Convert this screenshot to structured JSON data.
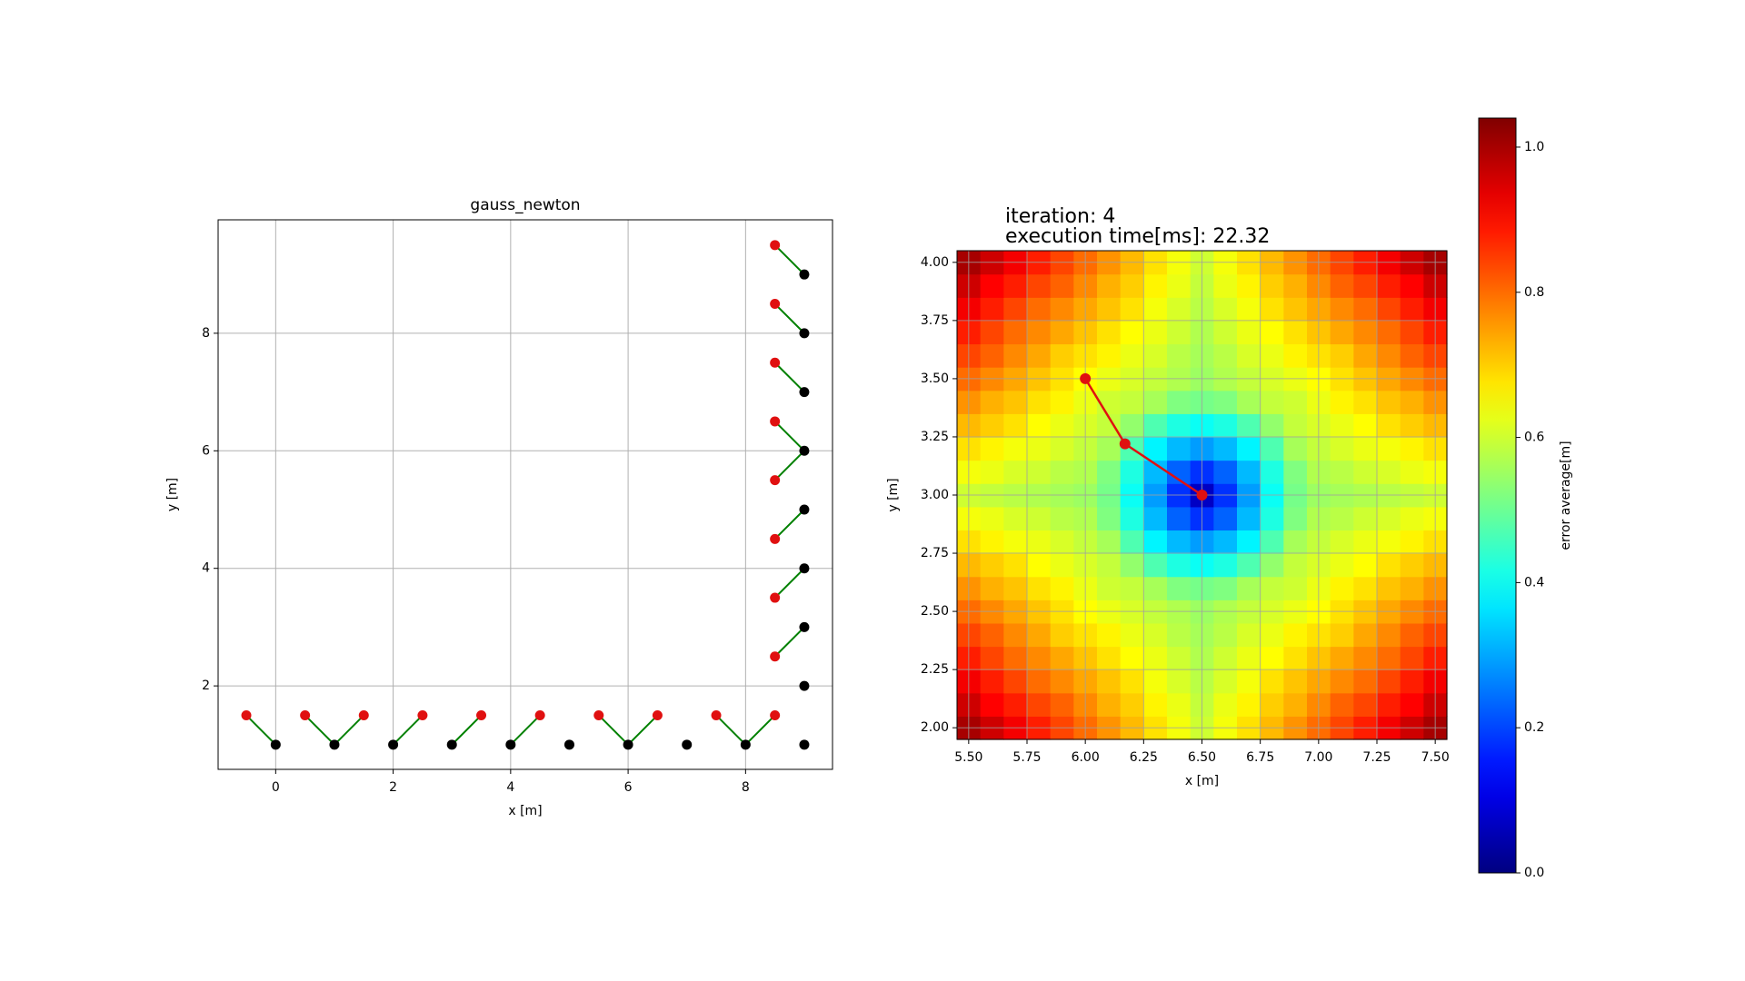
{
  "chart_data": [
    {
      "type": "scatter",
      "title": "gauss_newton",
      "xlabel": "x [m]",
      "ylabel": "y [m]",
      "xlim": [
        -0.98,
        9.48
      ],
      "ylim": [
        0.58,
        9.93
      ],
      "xticks": [
        0,
        2,
        4,
        6,
        8
      ],
      "yticks": [
        2,
        4,
        6,
        8
      ],
      "grid": true,
      "segments": {
        "color": "#008000",
        "lines": [
          {
            "x": [
              -0.5,
              0
            ],
            "y": [
              1.5,
              1
            ]
          },
          {
            "x": [
              0.5,
              1
            ],
            "y": [
              1.5,
              1
            ]
          },
          {
            "x": [
              1.5,
              1
            ],
            "y": [
              1.5,
              1
            ]
          },
          {
            "x": [
              2.5,
              2
            ],
            "y": [
              1.5,
              1
            ]
          },
          {
            "x": [
              3.5,
              3
            ],
            "y": [
              1.5,
              1
            ]
          },
          {
            "x": [
              4.5,
              4
            ],
            "y": [
              1.5,
              1
            ]
          },
          {
            "x": [
              5.5,
              6
            ],
            "y": [
              1.5,
              1
            ]
          },
          {
            "x": [
              6.5,
              6
            ],
            "y": [
              1.5,
              1
            ]
          },
          {
            "x": [
              7.5,
              8
            ],
            "y": [
              1.5,
              1
            ]
          },
          {
            "x": [
              8.5,
              8
            ],
            "y": [
              1.5,
              1
            ]
          },
          {
            "x": [
              8.5,
              9
            ],
            "y": [
              2.5,
              3
            ]
          },
          {
            "x": [
              8.5,
              9
            ],
            "y": [
              3.5,
              4
            ]
          },
          {
            "x": [
              8.5,
              9
            ],
            "y": [
              4.5,
              5
            ]
          },
          {
            "x": [
              8.5,
              9
            ],
            "y": [
              5.5,
              6
            ]
          },
          {
            "x": [
              8.5,
              9
            ],
            "y": [
              6.5,
              6
            ]
          },
          {
            "x": [
              8.5,
              9
            ],
            "y": [
              7.5,
              7
            ]
          },
          {
            "x": [
              8.5,
              9
            ],
            "y": [
              8.5,
              8
            ]
          },
          {
            "x": [
              8.5,
              9
            ],
            "y": [
              9.5,
              9
            ]
          }
        ]
      },
      "series": [
        {
          "color": "#000000",
          "x": [
            0,
            1,
            2,
            3,
            4,
            5,
            6,
            7,
            8,
            9,
            9,
            9,
            9,
            9,
            9,
            9,
            9,
            9
          ],
          "y": [
            1,
            1,
            1,
            1,
            1,
            1,
            1,
            1,
            1,
            1,
            2,
            3,
            4,
            5,
            6,
            7,
            8,
            9
          ]
        },
        {
          "color": "#e01010",
          "x": [
            -0.5,
            0.5,
            1.5,
            2.5,
            3.5,
            4.5,
            5.5,
            6.5,
            7.5,
            8.5,
            8.5,
            8.5,
            8.5,
            8.5,
            8.5,
            8.5,
            8.5,
            8.5
          ],
          "y": [
            1.5,
            1.5,
            1.5,
            1.5,
            1.5,
            1.5,
            1.5,
            1.5,
            1.5,
            1.5,
            2.5,
            3.5,
            4.5,
            5.5,
            6.5,
            7.5,
            8.5,
            9.5
          ]
        }
      ]
    },
    {
      "type": "heatmap",
      "title_lines": [
        "iteration: 4",
        "execution time[ms]: 22.32"
      ],
      "xlabel": "x [m]",
      "ylabel": "y [m]",
      "xlim": [
        5.45,
        7.55
      ],
      "ylim": [
        1.95,
        4.05
      ],
      "grid": true,
      "cmap": "jet",
      "xticks": [
        {
          "value": 5.5,
          "label": "5.50"
        },
        {
          "value": 5.75,
          "label": "5.75"
        },
        {
          "value": 6,
          "label": "6.00"
        },
        {
          "value": 6.25,
          "label": "6.25"
        },
        {
          "value": 6.5,
          "label": "6.50"
        },
        {
          "value": 6.75,
          "label": "6.75"
        },
        {
          "value": 7,
          "label": "7.00"
        },
        {
          "value": 7.25,
          "label": "7.25"
        },
        {
          "value": 7.5,
          "label": "7.50"
        }
      ],
      "yticks": [
        {
          "value": 2,
          "label": "2.00"
        },
        {
          "value": 2.25,
          "label": "2.25"
        },
        {
          "value": 2.5,
          "label": "2.50"
        },
        {
          "value": 2.75,
          "label": "2.75"
        },
        {
          "value": 3,
          "label": "3.00"
        },
        {
          "value": 3.25,
          "label": "3.25"
        },
        {
          "value": 3.5,
          "label": "3.50"
        },
        {
          "value": 3.75,
          "label": "3.75"
        },
        {
          "value": 4,
          "label": "4.00"
        }
      ],
      "x": [
        5.5,
        5.6,
        5.7,
        5.8,
        5.9,
        6.0,
        6.1,
        6.2,
        6.3,
        6.4,
        6.5,
        6.6,
        6.7,
        6.8,
        6.9,
        7.0,
        7.1,
        7.2,
        7.3,
        7.4,
        7.5
      ],
      "y": [
        2.0,
        2.1,
        2.2,
        2.3,
        2.4,
        2.5,
        2.6,
        2.7,
        2.8,
        2.9,
        3.0,
        3.1,
        3.2,
        3.3,
        3.4,
        3.5,
        3.6,
        3.7,
        3.8,
        3.9,
        4.0
      ],
      "z": [
        [
          1.0,
          0.96,
          0.92,
          0.88,
          0.84,
          0.8,
          0.76,
          0.72,
          0.68,
          0.64,
          0.6,
          0.64,
          0.68,
          0.72,
          0.76,
          0.8,
          0.84,
          0.88,
          0.92,
          0.96,
          1.0
        ],
        [
          0.96,
          0.91,
          0.88,
          0.84,
          0.81,
          0.77,
          0.73,
          0.7,
          0.66,
          0.63,
          0.59,
          0.63,
          0.66,
          0.7,
          0.73,
          0.77,
          0.81,
          0.84,
          0.88,
          0.91,
          0.96
        ],
        [
          0.92,
          0.88,
          0.84,
          0.8,
          0.77,
          0.74,
          0.71,
          0.68,
          0.64,
          0.61,
          0.58,
          0.61,
          0.64,
          0.68,
          0.71,
          0.74,
          0.77,
          0.8,
          0.84,
          0.88,
          0.92
        ],
        [
          0.88,
          0.84,
          0.8,
          0.77,
          0.74,
          0.71,
          0.68,
          0.65,
          0.63,
          0.6,
          0.57,
          0.6,
          0.63,
          0.65,
          0.68,
          0.71,
          0.74,
          0.77,
          0.8,
          0.84,
          0.88
        ],
        [
          0.84,
          0.81,
          0.77,
          0.74,
          0.7,
          0.68,
          0.66,
          0.63,
          0.61,
          0.58,
          0.56,
          0.58,
          0.61,
          0.63,
          0.66,
          0.68,
          0.7,
          0.74,
          0.77,
          0.81,
          0.84
        ],
        [
          0.8,
          0.77,
          0.74,
          0.71,
          0.68,
          0.65,
          0.63,
          0.61,
          0.59,
          0.57,
          0.55,
          0.57,
          0.59,
          0.61,
          0.63,
          0.65,
          0.68,
          0.71,
          0.74,
          0.77,
          0.8
        ],
        [
          0.76,
          0.73,
          0.71,
          0.68,
          0.66,
          0.63,
          0.6,
          0.59,
          0.56,
          0.52,
          0.51,
          0.52,
          0.56,
          0.59,
          0.6,
          0.63,
          0.66,
          0.68,
          0.71,
          0.73,
          0.76
        ],
        [
          0.72,
          0.7,
          0.68,
          0.65,
          0.63,
          0.61,
          0.59,
          0.54,
          0.47,
          0.42,
          0.4,
          0.42,
          0.47,
          0.54,
          0.59,
          0.61,
          0.63,
          0.65,
          0.68,
          0.7,
          0.72
        ],
        [
          0.68,
          0.66,
          0.64,
          0.63,
          0.61,
          0.59,
          0.56,
          0.47,
          0.38,
          0.32,
          0.29,
          0.32,
          0.38,
          0.47,
          0.56,
          0.59,
          0.61,
          0.63,
          0.64,
          0.66,
          0.68
        ],
        [
          0.64,
          0.63,
          0.61,
          0.6,
          0.58,
          0.57,
          0.52,
          0.42,
          0.32,
          0.23,
          0.18,
          0.23,
          0.32,
          0.42,
          0.52,
          0.57,
          0.58,
          0.6,
          0.61,
          0.63,
          0.64
        ],
        [
          0.6,
          0.59,
          0.58,
          0.57,
          0.56,
          0.55,
          0.51,
          0.4,
          0.29,
          0.18,
          0.07,
          0.18,
          0.29,
          0.4,
          0.51,
          0.55,
          0.56,
          0.57,
          0.58,
          0.59,
          0.6
        ],
        [
          0.64,
          0.63,
          0.61,
          0.6,
          0.58,
          0.57,
          0.52,
          0.42,
          0.32,
          0.23,
          0.18,
          0.23,
          0.32,
          0.42,
          0.52,
          0.57,
          0.58,
          0.6,
          0.61,
          0.63,
          0.64
        ],
        [
          0.68,
          0.66,
          0.64,
          0.63,
          0.61,
          0.59,
          0.56,
          0.47,
          0.38,
          0.32,
          0.29,
          0.32,
          0.38,
          0.47,
          0.56,
          0.59,
          0.61,
          0.63,
          0.64,
          0.66,
          0.68
        ],
        [
          0.72,
          0.7,
          0.68,
          0.65,
          0.63,
          0.61,
          0.59,
          0.54,
          0.47,
          0.42,
          0.4,
          0.42,
          0.47,
          0.54,
          0.59,
          0.61,
          0.63,
          0.65,
          0.68,
          0.7,
          0.72
        ],
        [
          0.76,
          0.73,
          0.71,
          0.68,
          0.66,
          0.63,
          0.6,
          0.59,
          0.56,
          0.52,
          0.51,
          0.52,
          0.56,
          0.59,
          0.6,
          0.63,
          0.66,
          0.68,
          0.71,
          0.73,
          0.76
        ],
        [
          0.8,
          0.77,
          0.74,
          0.71,
          0.68,
          0.65,
          0.63,
          0.61,
          0.59,
          0.57,
          0.55,
          0.57,
          0.59,
          0.61,
          0.63,
          0.65,
          0.68,
          0.71,
          0.74,
          0.77,
          0.8
        ],
        [
          0.84,
          0.81,
          0.77,
          0.74,
          0.7,
          0.68,
          0.66,
          0.63,
          0.61,
          0.58,
          0.56,
          0.58,
          0.61,
          0.63,
          0.66,
          0.68,
          0.7,
          0.74,
          0.77,
          0.81,
          0.84
        ],
        [
          0.88,
          0.84,
          0.8,
          0.77,
          0.74,
          0.71,
          0.68,
          0.65,
          0.63,
          0.6,
          0.57,
          0.6,
          0.63,
          0.65,
          0.68,
          0.71,
          0.74,
          0.77,
          0.8,
          0.84,
          0.88
        ],
        [
          0.92,
          0.88,
          0.84,
          0.8,
          0.77,
          0.74,
          0.71,
          0.68,
          0.64,
          0.61,
          0.58,
          0.61,
          0.64,
          0.68,
          0.71,
          0.74,
          0.77,
          0.8,
          0.84,
          0.88,
          0.92
        ],
        [
          0.96,
          0.91,
          0.88,
          0.84,
          0.81,
          0.77,
          0.73,
          0.7,
          0.66,
          0.63,
          0.59,
          0.63,
          0.66,
          0.7,
          0.73,
          0.77,
          0.81,
          0.84,
          0.88,
          0.91,
          0.96
        ],
        [
          1.0,
          0.96,
          0.92,
          0.88,
          0.84,
          0.8,
          0.76,
          0.72,
          0.68,
          0.64,
          0.6,
          0.64,
          0.68,
          0.72,
          0.76,
          0.8,
          0.84,
          0.88,
          0.92,
          0.96,
          1.0
        ]
      ],
      "path": {
        "color": "#e01010",
        "x": [
          6.0,
          6.17,
          6.5
        ],
        "y": [
          3.5,
          3.22,
          3.0
        ]
      },
      "clim": [
        0,
        1.04
      ],
      "colorbar_label": "error average[m]",
      "colorbar_ticks": [
        {
          "value": 0,
          "label": "0.0"
        },
        0.2,
        0.4,
        0.6,
        0.8,
        {
          "value": 1,
          "label": "1.0"
        }
      ]
    }
  ]
}
